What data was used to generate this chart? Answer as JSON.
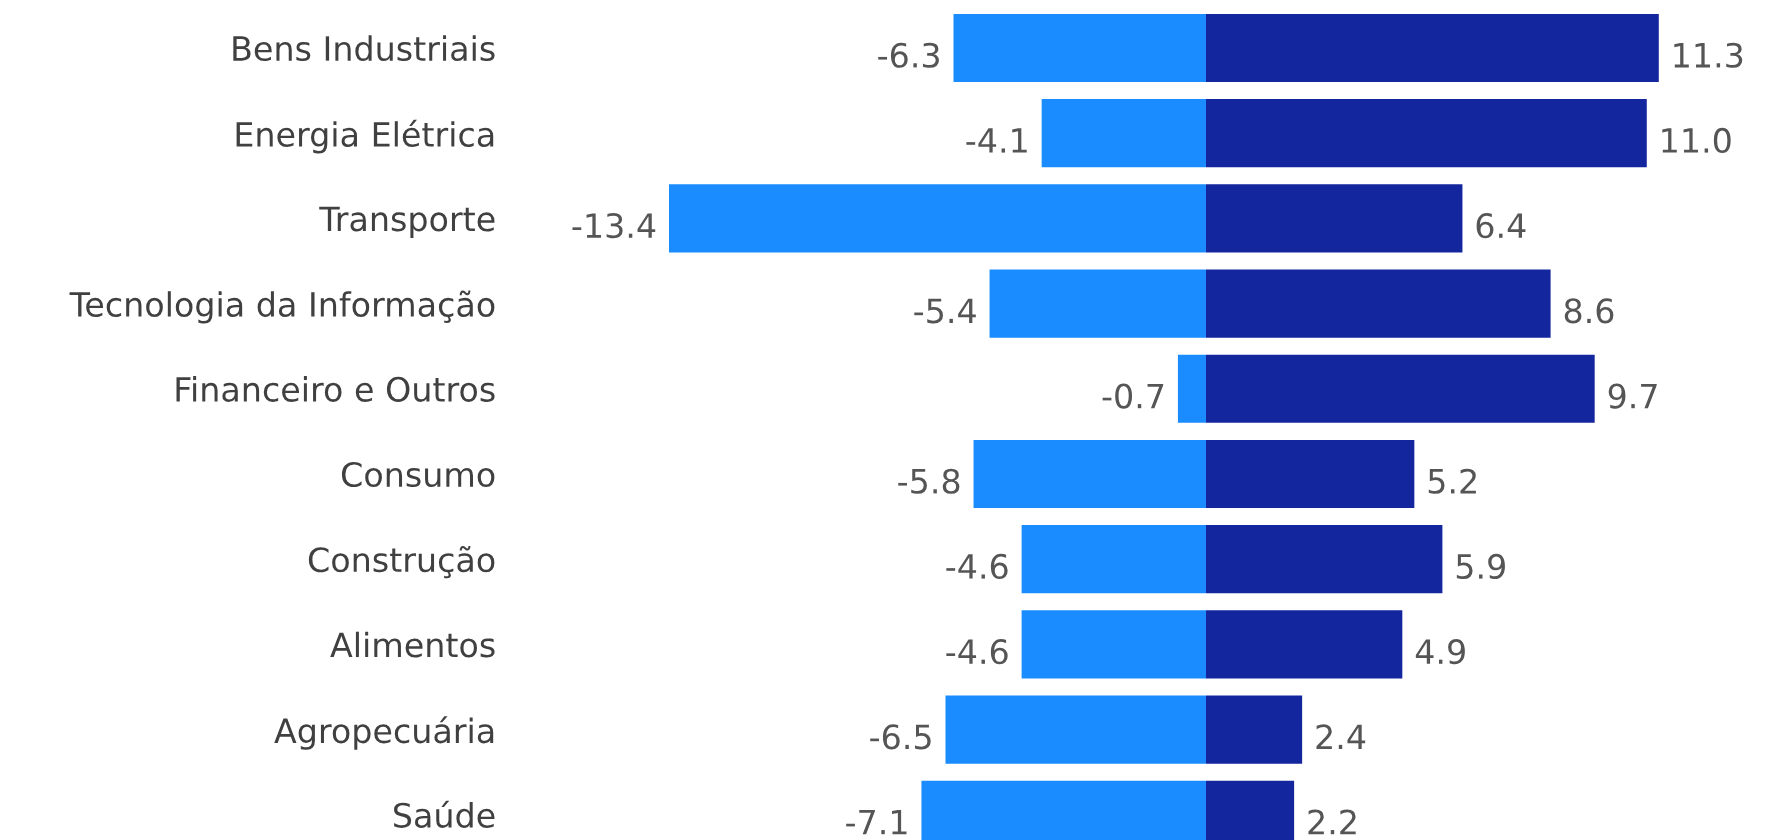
{
  "chart_data": {
    "type": "bar",
    "orientation": "horizontal",
    "stacked": true,
    "grid": false,
    "legend": false,
    "categories": [
      "Bens Industriais",
      "Energia Elétrica",
      "Transporte",
      "Tecnologia da Informação",
      "Financeiro e Outros",
      "Consumo",
      "Construção",
      "Alimentos",
      "Agropecuária",
      "Saúde"
    ],
    "series": [
      {
        "color": "#1a8cff",
        "values": [
          -6.3,
          -4.1,
          -13.4,
          -5.4,
          -0.7,
          -5.8,
          -4.6,
          -4.6,
          -6.5,
          -7.1
        ],
        "value_labels": [
          "-6.3",
          "-4.1",
          "-13.4",
          "-5.4",
          "-0.7",
          "-5.8",
          "-4.6",
          "-4.6",
          "-6.5",
          "-7.1"
        ]
      },
      {
        "color": "#13269e",
        "values": [
          11.3,
          11.0,
          6.4,
          8.6,
          9.7,
          5.2,
          5.9,
          4.9,
          2.4,
          2.2
        ],
        "value_labels": [
          "11.3",
          "11.0",
          "6.4",
          "8.6",
          "9.7",
          "5.2",
          "5.9",
          "4.9",
          "2.4",
          "2.2"
        ]
      }
    ]
  }
}
